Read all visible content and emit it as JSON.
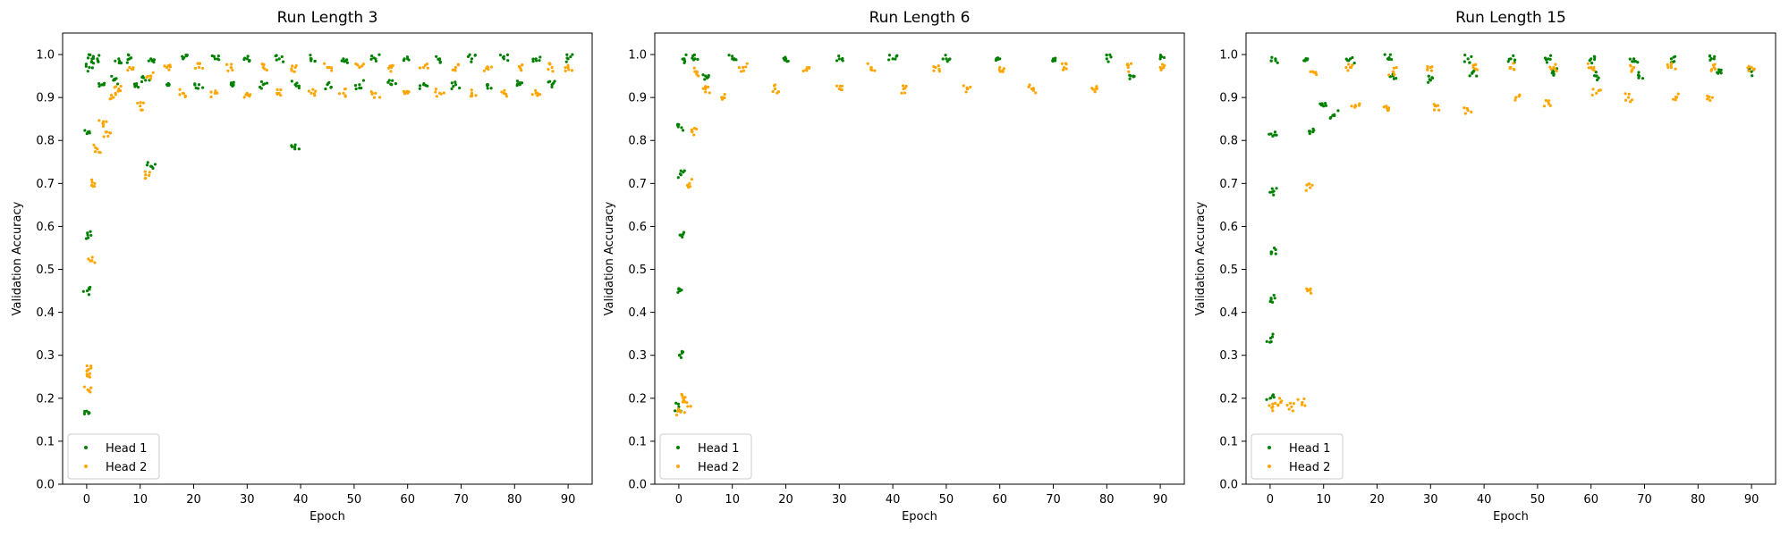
{
  "colors": {
    "head1": "#008000",
    "head2": "#ffa500"
  },
  "chart_data": [
    {
      "type": "scatter",
      "title": "Run Length 3",
      "xlabel": "Epoch",
      "ylabel": "Validation Accuracy",
      "xlim": [
        -4.5,
        94.5
      ],
      "ylim": [
        0,
        1.05
      ],
      "xticks": [
        0,
        10,
        20,
        30,
        40,
        50,
        60,
        70,
        80,
        90
      ],
      "yticks": [
        0.0,
        0.1,
        0.2,
        0.3,
        0.4,
        0.5,
        0.6,
        0.7,
        0.8,
        0.9,
        1.0
      ],
      "legend": {
        "position": "lower-left"
      },
      "run_length": 3,
      "series": [
        {
          "name": "Head 1",
          "color": "#008000",
          "summary": "starts near 0.17 at epoch 0, rises above 0.95 by epoch 1; thereafter alternates between ~0.99 and ~0.93 every 3 epochs through epoch 90",
          "points": [
            [
              0.0,
              0.17
            ],
            [
              0.1,
              0.45
            ],
            [
              0.2,
              0.58
            ],
            [
              0.3,
              0.82
            ],
            [
              0.5,
              0.97
            ],
            [
              1,
              0.99
            ],
            [
              2,
              0.99
            ],
            [
              3,
              0.93
            ],
            [
              5,
              0.94
            ],
            [
              6,
              0.99
            ],
            [
              8,
              0.99
            ],
            [
              9,
              0.93
            ],
            [
              11,
              0.94
            ],
            [
              12,
              0.74
            ],
            [
              12,
              0.99
            ],
            [
              15,
              0.93
            ],
            [
              18,
              0.99
            ],
            [
              21,
              0.93
            ],
            [
              24,
              0.99
            ],
            [
              27,
              0.93
            ],
            [
              30,
              0.99
            ],
            [
              33,
              0.93
            ],
            [
              36,
              0.99
            ],
            [
              39,
              0.79
            ],
            [
              39,
              0.93
            ],
            [
              42,
              0.99
            ],
            [
              45,
              0.93
            ],
            [
              48,
              0.99
            ],
            [
              51,
              0.93
            ],
            [
              54,
              0.99
            ],
            [
              57,
              0.93
            ],
            [
              60,
              0.99
            ],
            [
              63,
              0.93
            ],
            [
              66,
              0.99
            ],
            [
              69,
              0.93
            ],
            [
              72,
              0.99
            ],
            [
              75,
              0.93
            ],
            [
              78,
              0.99
            ],
            [
              81,
              0.93
            ],
            [
              84,
              0.99
            ],
            [
              87,
              0.93
            ],
            [
              90,
              0.99
            ]
          ]
        },
        {
          "name": "Head 2",
          "color": "#ffa500",
          "summary": "clustered around 0.20-0.28 for first epoch, jumps to ~0.82-0.99 from epoch 2; then oscillates between ~0.97 and ~0.91 every 3 epochs",
          "points": [
            [
              0.2,
              0.22
            ],
            [
              0.5,
              0.25
            ],
            [
              0.8,
              0.27
            ],
            [
              1,
              0.52
            ],
            [
              1.5,
              0.7
            ],
            [
              2,
              0.78
            ],
            [
              3,
              0.84
            ],
            [
              4,
              0.81
            ],
            [
              5,
              0.9
            ],
            [
              6,
              0.92
            ],
            [
              8,
              0.97
            ],
            [
              10,
              0.88
            ],
            [
              11,
              0.72
            ],
            [
              12,
              0.95
            ],
            [
              15,
              0.97
            ],
            [
              18,
              0.91
            ],
            [
              21,
              0.97
            ],
            [
              24,
              0.91
            ],
            [
              27,
              0.97
            ],
            [
              30,
              0.91
            ],
            [
              33,
              0.97
            ],
            [
              36,
              0.91
            ],
            [
              39,
              0.97
            ],
            [
              42,
              0.91
            ],
            [
              45,
              0.97
            ],
            [
              48,
              0.91
            ],
            [
              51,
              0.97
            ],
            [
              54,
              0.91
            ],
            [
              57,
              0.97
            ],
            [
              60,
              0.91
            ],
            [
              63,
              0.97
            ],
            [
              66,
              0.91
            ],
            [
              69,
              0.97
            ],
            [
              72,
              0.91
            ],
            [
              75,
              0.97
            ],
            [
              78,
              0.91
            ],
            [
              81,
              0.97
            ],
            [
              84,
              0.91
            ],
            [
              87,
              0.97
            ],
            [
              90,
              0.97
            ]
          ]
        }
      ]
    },
    {
      "type": "scatter",
      "title": "Run Length 6",
      "xlabel": "Epoch",
      "ylabel": "Validation Accuracy",
      "xlim": [
        -4.5,
        94.5
      ],
      "ylim": [
        0,
        1.05
      ],
      "xticks": [
        0,
        10,
        20,
        30,
        40,
        50,
        60,
        70,
        80,
        90
      ],
      "yticks": [
        0.0,
        0.1,
        0.2,
        0.3,
        0.4,
        0.5,
        0.6,
        0.7,
        0.8,
        0.9,
        1.0
      ],
      "legend": {
        "position": "lower-left"
      },
      "run_length": 6,
      "series": [
        {
          "name": "Head 1",
          "color": "#008000",
          "summary": "starts near 0.18-0.3 at epoch 0, reaches ~0.99 by epoch 1; stays near 0.99 with occasional dips to ~0.95",
          "points": [
            [
              0.0,
              0.18
            ],
            [
              0.1,
              0.3
            ],
            [
              0.2,
              0.45
            ],
            [
              0.3,
              0.58
            ],
            [
              0.4,
              0.72
            ],
            [
              0.5,
              0.83
            ],
            [
              1,
              0.99
            ],
            [
              3,
              0.99
            ],
            [
              5,
              0.95
            ],
            [
              10,
              0.99
            ],
            [
              20,
              0.99
            ],
            [
              30,
              0.99
            ],
            [
              40,
              0.99
            ],
            [
              50,
              0.99
            ],
            [
              60,
              0.99
            ],
            [
              70,
              0.99
            ],
            [
              80,
              0.99
            ],
            [
              85,
              0.95
            ],
            [
              90,
              0.99
            ]
          ]
        },
        {
          "name": "Head 2",
          "color": "#ffa500",
          "summary": "clustered around 0.15-0.22 for first epoch; from epoch 2 rises to ~0.9-0.98 and oscillates between ~0.98 and ~0.92 every 6 epochs",
          "points": [
            [
              0.3,
              0.17
            ],
            [
              0.8,
              0.2
            ],
            [
              1.5,
              0.19
            ],
            [
              2,
              0.7
            ],
            [
              2.5,
              0.82
            ],
            [
              3,
              0.96
            ],
            [
              5,
              0.92
            ],
            [
              8,
              0.9
            ],
            [
              12,
              0.97
            ],
            [
              18,
              0.92
            ],
            [
              24,
              0.97
            ],
            [
              30,
              0.92
            ],
            [
              36,
              0.97
            ],
            [
              42,
              0.92
            ],
            [
              48,
              0.97
            ],
            [
              54,
              0.92
            ],
            [
              60,
              0.97
            ],
            [
              66,
              0.92
            ],
            [
              72,
              0.97
            ],
            [
              78,
              0.92
            ],
            [
              84,
              0.97
            ],
            [
              90,
              0.97
            ]
          ]
        }
      ]
    },
    {
      "type": "scatter",
      "title": "Run Length 15",
      "xlabel": "Epoch",
      "ylabel": "Validation Accuracy",
      "xlim": [
        -4.5,
        94.5
      ],
      "ylim": [
        0,
        1.05
      ],
      "xticks": [
        0,
        10,
        20,
        30,
        40,
        50,
        60,
        70,
        80,
        90
      ],
      "yticks": [
        0.0,
        0.1,
        0.2,
        0.3,
        0.4,
        0.5,
        0.6,
        0.7,
        0.8,
        0.9,
        1.0
      ],
      "legend": {
        "position": "lower-left"
      },
      "run_length": 15,
      "series": [
        {
          "name": "Head 1",
          "color": "#008000",
          "summary": "rises from ~0.2 to ~0.99 in first epoch; stays ~0.99 until epoch 8, dips to ~0.87 around epochs 8-15, then alternates ~0.99 / ~0.95",
          "points": [
            [
              0.0,
              0.2
            ],
            [
              0.1,
              0.34
            ],
            [
              0.2,
              0.43
            ],
            [
              0.3,
              0.54
            ],
            [
              0.4,
              0.68
            ],
            [
              0.5,
              0.81
            ],
            [
              1,
              0.99
            ],
            [
              7,
              0.99
            ],
            [
              8,
              0.82
            ],
            [
              10,
              0.88
            ],
            [
              12,
              0.86
            ],
            [
              15,
              0.99
            ],
            [
              22,
              0.99
            ],
            [
              23,
              0.95
            ],
            [
              30,
              0.94
            ],
            [
              37,
              0.99
            ],
            [
              38,
              0.96
            ],
            [
              45,
              0.99
            ],
            [
              52,
              0.99
            ],
            [
              53,
              0.96
            ],
            [
              60,
              0.99
            ],
            [
              61,
              0.95
            ],
            [
              68,
              0.99
            ],
            [
              69,
              0.95
            ],
            [
              75,
              0.99
            ],
            [
              83,
              0.99
            ],
            [
              84,
              0.96
            ],
            [
              90,
              0.96
            ]
          ]
        },
        {
          "name": "Head 2",
          "color": "#ffa500",
          "summary": "clustered around 0.15-0.22 for first 7 epochs; then jumps to ~0.95-0.98 and alternates between ~0.97 and ~0.87-0.90 every 7-8 epochs",
          "points": [
            [
              0.5,
              0.18
            ],
            [
              2,
              0.19
            ],
            [
              4,
              0.18
            ],
            [
              6,
              0.19
            ],
            [
              7,
              0.45
            ],
            [
              7.5,
              0.69
            ],
            [
              8,
              0.96
            ],
            [
              15,
              0.97
            ],
            [
              16,
              0.88
            ],
            [
              22,
              0.87
            ],
            [
              23,
              0.96
            ],
            [
              30,
              0.97
            ],
            [
              31,
              0.88
            ],
            [
              37,
              0.87
            ],
            [
              38,
              0.97
            ],
            [
              45,
              0.97
            ],
            [
              46,
              0.9
            ],
            [
              52,
              0.89
            ],
            [
              53,
              0.97
            ],
            [
              60,
              0.97
            ],
            [
              61,
              0.91
            ],
            [
              67,
              0.9
            ],
            [
              68,
              0.97
            ],
            [
              75,
              0.97
            ],
            [
              76,
              0.9
            ],
            [
              82,
              0.9
            ],
            [
              83,
              0.97
            ],
            [
              90,
              0.97
            ]
          ]
        }
      ]
    }
  ]
}
